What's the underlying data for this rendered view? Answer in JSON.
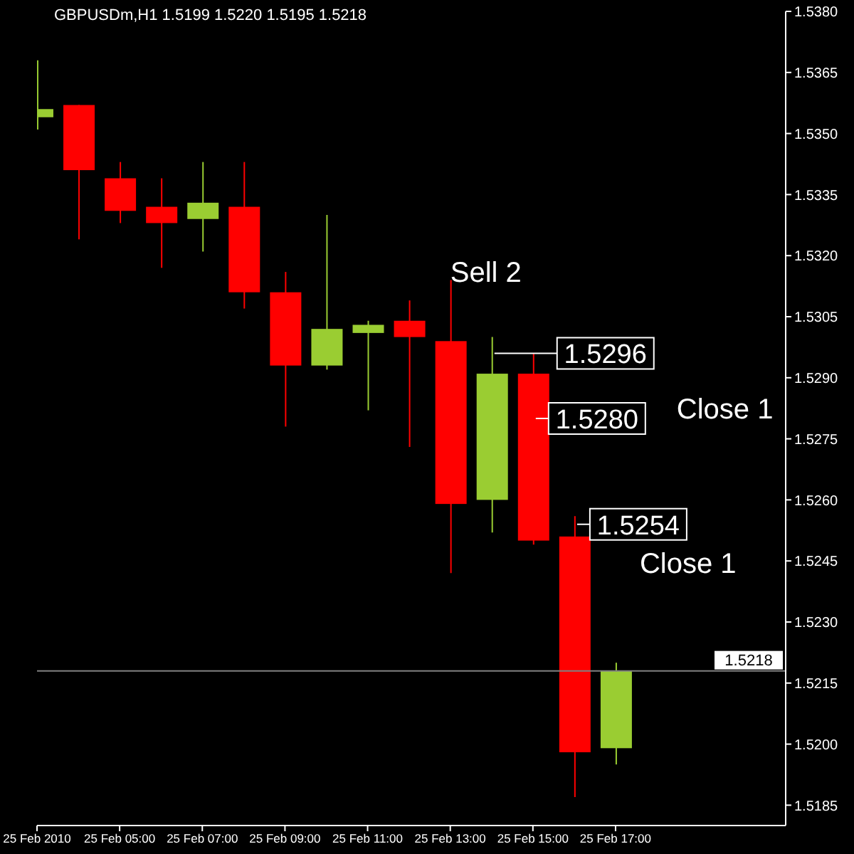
{
  "chart_data": {
    "type": "candlestick",
    "title": "GBPUSDm,H1  1.5199 1.5220 1.5195 1.5218",
    "x": [
      "2010-02-25T03:00",
      "2010-02-25T04:00",
      "2010-02-25T05:00",
      "2010-02-25T06:00",
      "2010-02-25T07:00",
      "2010-02-25T08:00",
      "2010-02-25T09:00",
      "2010-02-25T10:00",
      "2010-02-25T11:00",
      "2010-02-25T12:00",
      "2010-02-25T13:00",
      "2010-02-25T14:00",
      "2010-02-25T15:00",
      "2010-02-25T16:00",
      "2010-02-25T17:00"
    ],
    "ohlc": [
      [
        1.5354,
        1.5368,
        1.5351,
        1.5356
      ],
      [
        1.5357,
        1.5357,
        1.5324,
        1.5341
      ],
      [
        1.5339,
        1.5343,
        1.5328,
        1.5331
      ],
      [
        1.5332,
        1.5339,
        1.5317,
        1.5328
      ],
      [
        1.5329,
        1.5343,
        1.5321,
        1.5333
      ],
      [
        1.5332,
        1.5343,
        1.5307,
        1.5311
      ],
      [
        1.5311,
        1.5316,
        1.5278,
        1.5293
      ],
      [
        1.5293,
        1.533,
        1.5292,
        1.5302
      ],
      [
        1.5301,
        1.5304,
        1.5282,
        1.5303
      ],
      [
        1.5304,
        1.5309,
        1.5273,
        1.53
      ],
      [
        1.5299,
        1.5314,
        1.5242,
        1.5259
      ],
      [
        1.526,
        1.53,
        1.5252,
        1.5291
      ],
      [
        1.5291,
        1.5296,
        1.5249,
        1.525
      ],
      [
        1.5251,
        1.5256,
        1.5187,
        1.5198
      ],
      [
        1.5199,
        1.522,
        1.5195,
        1.5218
      ]
    ],
    "colors": [
      "#9acd32",
      "#ff0000",
      "#ff0000",
      "#ff0000",
      "#9acd32",
      "#ff0000",
      "#ff0000",
      "#9acd32",
      "#9acd32",
      "#ff0000",
      "#ff0000",
      "#9acd32",
      "#ff0000",
      "#ff0000",
      "#9acd32"
    ],
    "xlim": [
      "2010-02-25T03:00",
      "2010-02-25T21:07"
    ],
    "xticks": [
      {
        "value": "2010-02-25T03:00",
        "label": "25 Feb 2010"
      },
      {
        "value": "2010-02-25T05:00",
        "label": "25 Feb 05:00"
      },
      {
        "value": "2010-02-25T07:00",
        "label": "25 Feb 07:00"
      },
      {
        "value": "2010-02-25T09:00",
        "label": "25 Feb 09:00"
      },
      {
        "value": "2010-02-25T11:00",
        "label": "25 Feb 11:00"
      },
      {
        "value": "2010-02-25T13:00",
        "label": "25 Feb 13:00"
      },
      {
        "value": "2010-02-25T15:00",
        "label": "25 Feb 15:00"
      },
      {
        "value": "2010-02-25T17:00",
        "label": "25 Feb 17:00"
      }
    ],
    "ylim": [
      1.518,
      1.538
    ],
    "yticks": [
      1.5185,
      {
        "value": 1.52,
        "label": "1.5200"
      },
      1.5215,
      {
        "value": 1.523,
        "label": "1.5230"
      },
      1.5245,
      {
        "value": 1.526,
        "label": "1.5260"
      },
      1.5275,
      {
        "value": 1.529,
        "label": "1.5290"
      },
      1.5305,
      {
        "value": 1.532,
        "label": "1.5320"
      },
      1.5335,
      {
        "value": 1.535,
        "label": "1.5350"
      },
      1.5365,
      {
        "value": 1.538,
        "label": "1.5380"
      }
    ],
    "ref_lines": [
      {
        "axis": "y",
        "value": 1.5218,
        "label": "1.5218",
        "color": "#808080"
      }
    ],
    "annotations": [
      "Sell 2",
      {
        "text": "1.5296",
        "x": "2010-02-25T14:00",
        "y": 1.5296
      },
      {
        "text": "1.5280",
        "x": "2010-02-25T15:00",
        "y": 1.528
      },
      "Close 1",
      {
        "text": "1.5254",
        "x": "2010-02-25T16:00",
        "y": 1.5254
      },
      "Close 1"
    ],
    "tick_labels": true
  }
}
